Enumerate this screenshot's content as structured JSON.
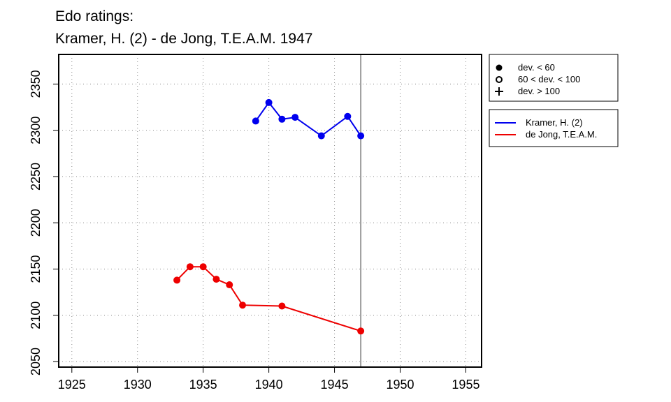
{
  "chart_data": {
    "type": "line",
    "title": "Edo ratings:",
    "subtitle": "Kramer, H. (2) - de Jong, T.E.A.M. 1947",
    "xlim": [
      1924,
      1956.2
    ],
    "ylim": [
      2044,
      2382
    ],
    "xticks": [
      1925,
      1930,
      1935,
      1940,
      1945,
      1950,
      1955
    ],
    "yticks": [
      2050,
      2100,
      2150,
      2200,
      2250,
      2300,
      2350
    ],
    "grid": true,
    "vline": 1947,
    "marker_legend": [
      {
        "label": "dev. < 60",
        "shape": "filled-circle"
      },
      {
        "label": "60 < dev. < 100",
        "shape": "open-circle"
      },
      {
        "label": "dev. > 100",
        "shape": "plus"
      }
    ],
    "series": [
      {
        "name": "Kramer, H. (2)",
        "color": "#0000ee",
        "x": [
          1939,
          1940,
          1941,
          1942,
          1944,
          1946,
          1947
        ],
        "values": [
          2310,
          2330,
          2312,
          2314,
          2294,
          2315,
          2294
        ]
      },
      {
        "name": "de Jong, T.E.A.M.",
        "color": "#ee0000",
        "x": [
          1933,
          1934,
          1935,
          1936,
          1937,
          1938,
          1941,
          1947
        ],
        "values": [
          2138,
          2152.5,
          2152.5,
          2139,
          2133,
          2111,
          2110,
          2083
        ]
      }
    ]
  }
}
